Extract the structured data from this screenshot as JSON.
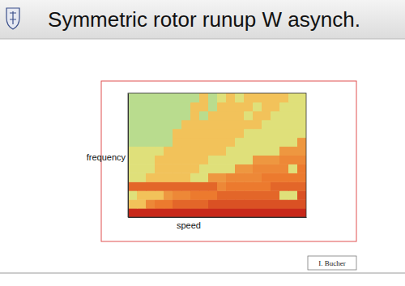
{
  "chart_data": {
    "type": "heatmap",
    "title": "Symmetric rotor runup W asynch.",
    "xlabel": "speed",
    "ylabel": "frequency",
    "annotations": [
      "I. Bucher"
    ],
    "xlim": [
      0,
      20
    ],
    "ylim": [
      0,
      14
    ],
    "zlim": [
      0,
      1
    ],
    "tick_labels": false,
    "cells": [
      [
        1,
        1,
        1,
        1,
        1,
        1,
        1,
        1,
        1,
        1,
        1,
        1,
        1,
        1,
        1,
        1,
        1,
        1,
        1,
        1
      ],
      [
        0.55,
        0.55,
        0.75,
        0.8,
        0.8,
        0.85,
        0.85,
        0.85,
        0.85,
        0.9,
        0.9,
        0.9,
        0.9,
        0.9,
        0.9,
        0.9,
        0.9,
        0.9,
        0.9,
        0.9
      ],
      [
        0.25,
        0.55,
        0.55,
        0.55,
        0.7,
        0.75,
        0.75,
        0.8,
        0.8,
        0.8,
        0.85,
        0.85,
        0.85,
        0.85,
        0.85,
        0.85,
        0.85,
        0.25,
        0.25,
        0.9
      ],
      [
        0.85,
        0.85,
        0.85,
        0.85,
        0.85,
        0.85,
        0.85,
        0.85,
        0.85,
        0.85,
        0.75,
        0.8,
        0.8,
        0.8,
        0.8,
        0.8,
        0.85,
        0.85,
        0.85,
        0.85
      ],
      [
        0.25,
        0.25,
        0.55,
        0.55,
        0.55,
        0.55,
        0.55,
        0.25,
        0.25,
        0.7,
        0.7,
        0.75,
        0.75,
        0.75,
        0.75,
        0.8,
        0.8,
        0.8,
        0.8,
        0.8
      ],
      [
        0.25,
        0.25,
        0.25,
        0.55,
        0.55,
        0.55,
        0.55,
        0.55,
        0.25,
        0.25,
        0.25,
        0.25,
        0.7,
        0.7,
        0.75,
        0.75,
        0.75,
        0.75,
        0.25,
        0.8
      ],
      [
        0.25,
        0.25,
        0.25,
        0.55,
        0.55,
        0.55,
        0.55,
        0.55,
        0.55,
        0.25,
        0.25,
        0.25,
        0.25,
        0.25,
        0.7,
        0.7,
        0.7,
        0.75,
        0.75,
        0.75
      ],
      [
        0.25,
        0.25,
        0.25,
        0.25,
        0.55,
        0.55,
        0.55,
        0.55,
        0.55,
        0.55,
        0.55,
        0.25,
        0.25,
        0.25,
        0.25,
        0.25,
        0.25,
        0.7,
        0.7,
        0.7
      ],
      [
        0.15,
        0.15,
        0.15,
        0.15,
        0.15,
        0.55,
        0.55,
        0.55,
        0.55,
        0.55,
        0.55,
        0.55,
        0.25,
        0.25,
        0.25,
        0.25,
        0.25,
        0.25,
        0.25,
        0.7
      ],
      [
        0.15,
        0.15,
        0.15,
        0.15,
        0.15,
        0.55,
        0.55,
        0.55,
        0.55,
        0.55,
        0.55,
        0.55,
        0.55,
        0.25,
        0.25,
        0.25,
        0.25,
        0.25,
        0.25,
        0.25
      ],
      [
        0.15,
        0.15,
        0.15,
        0.15,
        0.15,
        0.15,
        0.55,
        0.55,
        0.55,
        0.55,
        0.55,
        0.55,
        0.55,
        0.55,
        0.55,
        0.25,
        0.25,
        0.25,
        0.25,
        0.25
      ],
      [
        0.15,
        0.15,
        0.15,
        0.15,
        0.15,
        0.15,
        0.15,
        0.55,
        0.15,
        0.55,
        0.55,
        0.55,
        0.55,
        0.25,
        0.55,
        0.55,
        0.25,
        0.25,
        0.25,
        0.25
      ],
      [
        0.15,
        0.15,
        0.15,
        0.15,
        0.15,
        0.15,
        0.15,
        0.55,
        0.55,
        0.15,
        0.55,
        0.55,
        0.55,
        0.55,
        0.25,
        0.55,
        0.55,
        0.25,
        0.25,
        0.25
      ],
      [
        0.15,
        0.15,
        0.15,
        0.15,
        0.15,
        0.15,
        0.15,
        0.15,
        0.55,
        0.15,
        0.25,
        0.55,
        0.25,
        0.55,
        0.55,
        0.55,
        0.55,
        0.55,
        0.25,
        0.25
      ]
    ]
  }
}
